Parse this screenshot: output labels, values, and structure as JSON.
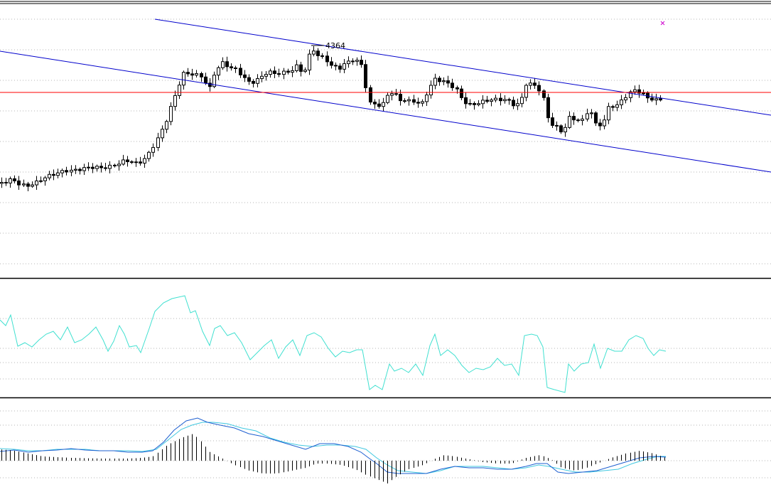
{
  "chart_data": {
    "type": "candlestick",
    "price_label": "4364",
    "colors": {
      "background": "#ffffff",
      "candle_up": "#ffffff",
      "candle_down": "#000000",
      "candle_outline": "#000000",
      "channel": "#0000cc",
      "horizontal_level": "#ff0000",
      "oscillator": "#40e0d0",
      "macd_line": "#1e5fd0",
      "signal_line": "#40c8e0",
      "histogram": "#000000",
      "grid": "#b4b4b4",
      "panel_divider": "#000000",
      "marker": "#cc00cc"
    },
    "panels": [
      "price",
      "oscillator",
      "macd"
    ],
    "grid": true,
    "marker_icon": "x-cross-icon"
  }
}
